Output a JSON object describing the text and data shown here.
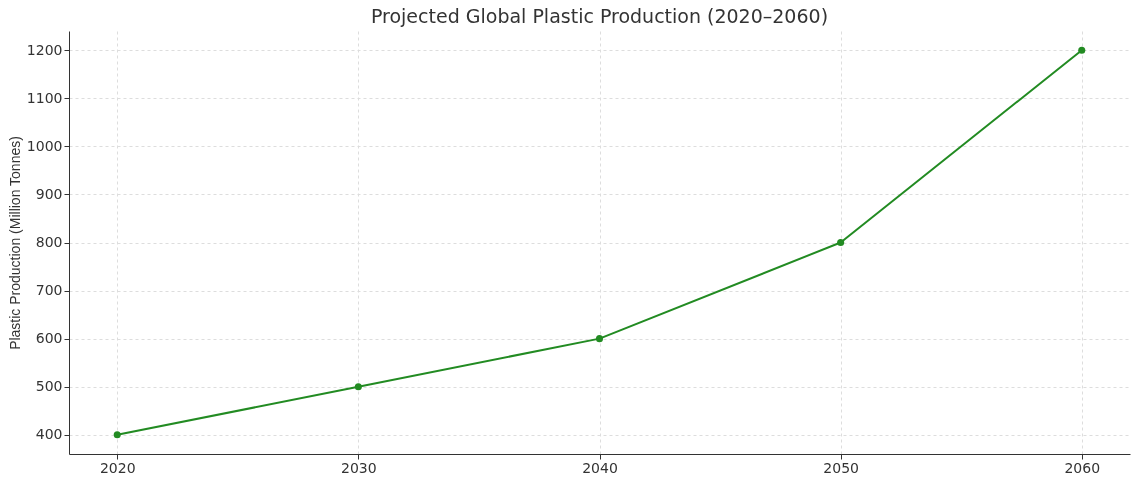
{
  "chart_data": {
    "type": "line",
    "title": "Projected Global Plastic Production (2020–2060)",
    "ylabel": "Plastic Production (Million Tonnes)",
    "x": [
      2020,
      2030,
      2040,
      2050,
      2060
    ],
    "series": [
      {
        "color": "#228b22",
        "values": [
          400,
          500,
          600,
          800,
          1200
        ]
      }
    ],
    "xlim": [
      2018,
      2062
    ],
    "xticks": [
      2020,
      2030,
      2040,
      2050,
      2060
    ],
    "ylim": [
      360,
      1240
    ],
    "yticks": [
      400,
      500,
      600,
      700,
      800,
      900,
      1000,
      1100,
      1200
    ],
    "grid": true,
    "marker": "circle",
    "line_style": "solid"
  }
}
